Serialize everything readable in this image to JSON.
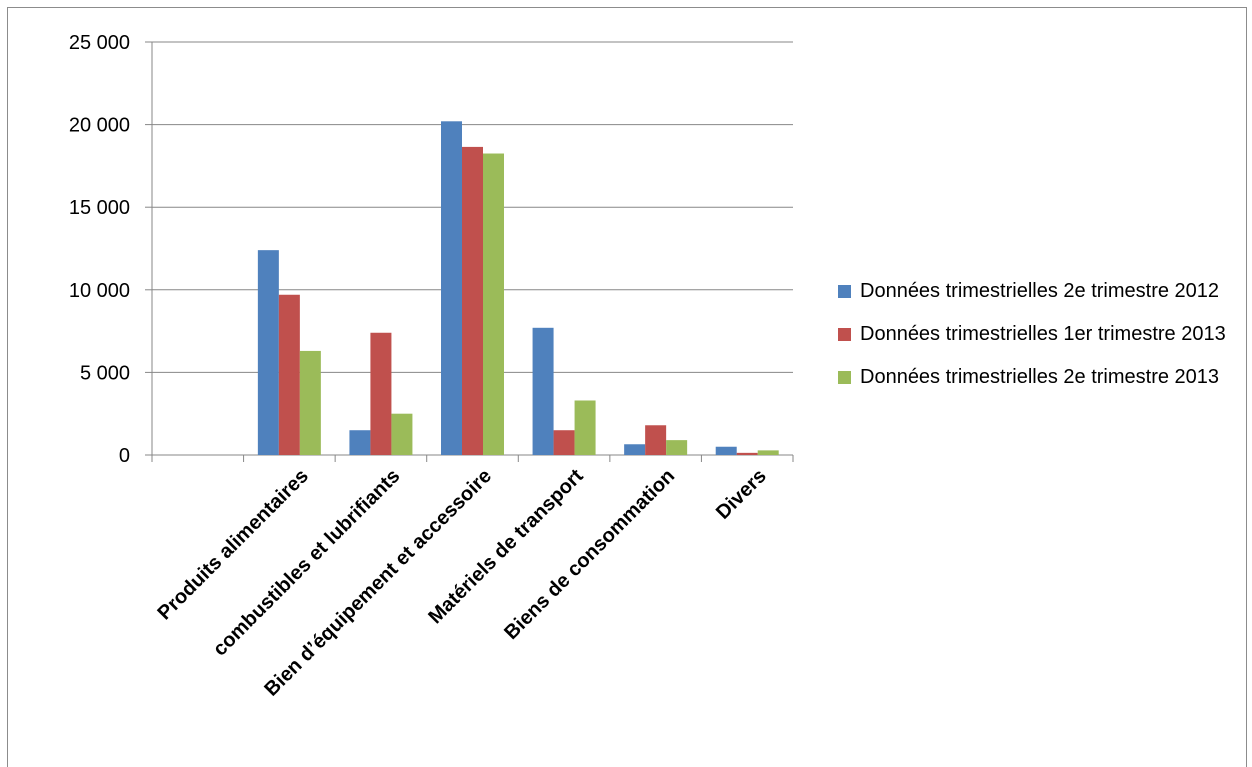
{
  "chart_data": {
    "type": "bar",
    "categories": [
      "",
      "Produits alimentaires",
      "combustibles et lubrifiants",
      "Bien d’équipement et accessoire",
      "Matériels de transport",
      "Biens de consommation",
      "Divers"
    ],
    "series": [
      {
        "name": "Données trimestrielles 2e trimestre 2012",
        "color": "#4F81BD",
        "values": [
          null,
          12400,
          1500,
          20200,
          7700,
          650,
          500
        ]
      },
      {
        "name": "Données trimestrielles 1er trimestre 2013",
        "color": "#C0504D",
        "values": [
          null,
          9700,
          7400,
          18650,
          1500,
          1800,
          130
        ]
      },
      {
        "name": "Données trimestrielles 2e trimestre 2013",
        "color": "#9BBB59",
        "values": [
          null,
          6300,
          2500,
          18250,
          3300,
          900,
          280
        ]
      }
    ],
    "ylim": [
      0,
      25000
    ],
    "yticks": [
      0,
      5000,
      10000,
      15000,
      20000,
      25000
    ],
    "ytick_labels": [
      "0",
      "5 000",
      "10 000",
      "15 000",
      "20 000",
      "25 000"
    ],
    "grid": true,
    "legend_position": "right",
    "title": "",
    "xlabel": "",
    "ylabel": ""
  }
}
